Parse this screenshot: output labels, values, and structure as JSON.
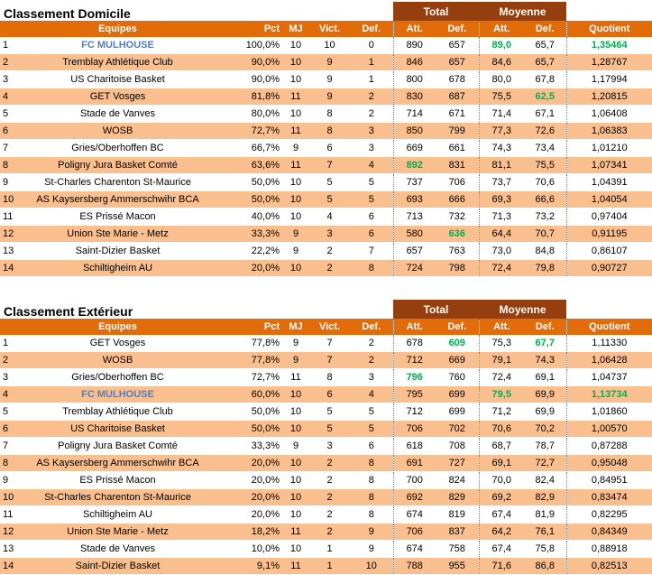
{
  "tables": [
    {
      "title": "Classement Domicile",
      "group_total": "Total",
      "group_moyenne": "Moyenne",
      "headers": [
        "Equipes",
        "Pct",
        "MJ",
        "Vict.",
        "Def.",
        "Att.",
        "Def.",
        "Att.",
        "Def.",
        "Quotient"
      ],
      "rows": [
        {
          "rank": "1",
          "team": "FC MULHOUSE",
          "pct": "100,0%",
          "mj": "10",
          "vict": "10",
          "def": "0",
          "tot_att": "890",
          "tot_def": "657",
          "moy_att": "89,0",
          "moy_def": "65,7",
          "quotient": "1,35464",
          "highlight_team": true,
          "green": [
            "moy_att",
            "quotient"
          ]
        },
        {
          "rank": "2",
          "team": "Tremblay Athlétique Club",
          "pct": "90,0%",
          "mj": "10",
          "vict": "9",
          "def": "1",
          "tot_att": "846",
          "tot_def": "657",
          "moy_att": "84,6",
          "moy_def": "65,7",
          "quotient": "1,28767",
          "green": []
        },
        {
          "rank": "3",
          "team": "US Charitoise Basket",
          "pct": "90,0%",
          "mj": "10",
          "vict": "9",
          "def": "1",
          "tot_att": "800",
          "tot_def": "678",
          "moy_att": "80,0",
          "moy_def": "67,8",
          "quotient": "1,17994",
          "green": []
        },
        {
          "rank": "4",
          "team": "GET Vosges",
          "pct": "81,8%",
          "mj": "11",
          "vict": "9",
          "def": "2",
          "tot_att": "830",
          "tot_def": "687",
          "moy_att": "75,5",
          "moy_def": "62,5",
          "quotient": "1,20815",
          "green": [
            "moy_def"
          ]
        },
        {
          "rank": "5",
          "team": "Stade de Vanves",
          "pct": "80,0%",
          "mj": "10",
          "vict": "8",
          "def": "2",
          "tot_att": "714",
          "tot_def": "671",
          "moy_att": "71,4",
          "moy_def": "67,1",
          "quotient": "1,06408",
          "green": []
        },
        {
          "rank": "6",
          "team": "WOSB",
          "pct": "72,7%",
          "mj": "11",
          "vict": "8",
          "def": "3",
          "tot_att": "850",
          "tot_def": "799",
          "moy_att": "77,3",
          "moy_def": "72,6",
          "quotient": "1,06383",
          "green": []
        },
        {
          "rank": "7",
          "team": "Gries/Oberhoffen BC",
          "pct": "66,7%",
          "mj": "9",
          "vict": "6",
          "def": "3",
          "tot_att": "669",
          "tot_def": "661",
          "moy_att": "74,3",
          "moy_def": "73,4",
          "quotient": "1,01210",
          "green": []
        },
        {
          "rank": "8",
          "team": "Poligny Jura Basket Comté",
          "pct": "63,6%",
          "mj": "11",
          "vict": "7",
          "def": "4",
          "tot_att": "892",
          "tot_def": "831",
          "moy_att": "81,1",
          "moy_def": "75,5",
          "quotient": "1,07341",
          "green": [
            "tot_att"
          ]
        },
        {
          "rank": "9",
          "team": "St-Charles Charenton St-Maurice",
          "pct": "50,0%",
          "mj": "10",
          "vict": "5",
          "def": "5",
          "tot_att": "737",
          "tot_def": "706",
          "moy_att": "73,7",
          "moy_def": "70,6",
          "quotient": "1,04391",
          "green": []
        },
        {
          "rank": "10",
          "team": "AS Kaysersberg Ammerschwihr BCA",
          "pct": "50,0%",
          "mj": "10",
          "vict": "5",
          "def": "5",
          "tot_att": "693",
          "tot_def": "666",
          "moy_att": "69,3",
          "moy_def": "66,6",
          "quotient": "1,04054",
          "green": []
        },
        {
          "rank": "11",
          "team": "ES Prissé Macon",
          "pct": "40,0%",
          "mj": "10",
          "vict": "4",
          "def": "6",
          "tot_att": "713",
          "tot_def": "732",
          "moy_att": "71,3",
          "moy_def": "73,2",
          "quotient": "0,97404",
          "green": []
        },
        {
          "rank": "12",
          "team": "Union Ste Marie - Metz",
          "pct": "33,3%",
          "mj": "9",
          "vict": "3",
          "def": "6",
          "tot_att": "580",
          "tot_def": "636",
          "moy_att": "64,4",
          "moy_def": "70,7",
          "quotient": "0,91195",
          "green": [
            "tot_def"
          ]
        },
        {
          "rank": "13",
          "team": "Saint-Dizier Basket",
          "pct": "22,2%",
          "mj": "9",
          "vict": "2",
          "def": "7",
          "tot_att": "657",
          "tot_def": "763",
          "moy_att": "73,0",
          "moy_def": "84,8",
          "quotient": "0,86107",
          "green": []
        },
        {
          "rank": "14",
          "team": "Schiltigheim AU",
          "pct": "20,0%",
          "mj": "10",
          "vict": "2",
          "def": "8",
          "tot_att": "724",
          "tot_def": "798",
          "moy_att": "72,4",
          "moy_def": "79,8",
          "quotient": "0,90727",
          "green": []
        }
      ]
    },
    {
      "title": "Classement Extérieur",
      "group_total": "Total",
      "group_moyenne": "Moyenne",
      "headers": [
        "Equipes",
        "Pct",
        "MJ",
        "Vict.",
        "Def.",
        "Att.",
        "Def.",
        "Att.",
        "Def.",
        "Quotient"
      ],
      "rows": [
        {
          "rank": "1",
          "team": "GET Vosges",
          "pct": "77,8%",
          "mj": "9",
          "vict": "7",
          "def": "2",
          "tot_att": "678",
          "tot_def": "609",
          "moy_att": "75,3",
          "moy_def": "67,7",
          "quotient": "1,11330",
          "green": [
            "tot_def",
            "moy_def"
          ]
        },
        {
          "rank": "2",
          "team": "WOSB",
          "pct": "77,8%",
          "mj": "9",
          "vict": "7",
          "def": "2",
          "tot_att": "712",
          "tot_def": "669",
          "moy_att": "79,1",
          "moy_def": "74,3",
          "quotient": "1,06428",
          "green": []
        },
        {
          "rank": "3",
          "team": "Gries/Oberhoffen BC",
          "pct": "72,7%",
          "mj": "11",
          "vict": "8",
          "def": "3",
          "tot_att": "796",
          "tot_def": "760",
          "moy_att": "72,4",
          "moy_def": "69,1",
          "quotient": "1,04737",
          "green": [
            "tot_att"
          ]
        },
        {
          "rank": "4",
          "team": "FC MULHOUSE",
          "pct": "60,0%",
          "mj": "10",
          "vict": "6",
          "def": "4",
          "tot_att": "795",
          "tot_def": "699",
          "moy_att": "79,5",
          "moy_def": "69,9",
          "quotient": "1,13734",
          "highlight_team": true,
          "green": [
            "moy_att",
            "quotient"
          ]
        },
        {
          "rank": "5",
          "team": "Tremblay Athlétique Club",
          "pct": "50,0%",
          "mj": "10",
          "vict": "5",
          "def": "5",
          "tot_att": "712",
          "tot_def": "699",
          "moy_att": "71,2",
          "moy_def": "69,9",
          "quotient": "1,01860",
          "green": []
        },
        {
          "rank": "6",
          "team": "US Charitoise Basket",
          "pct": "50,0%",
          "mj": "10",
          "vict": "5",
          "def": "5",
          "tot_att": "706",
          "tot_def": "702",
          "moy_att": "70,6",
          "moy_def": "70,2",
          "quotient": "1,00570",
          "green": []
        },
        {
          "rank": "7",
          "team": "Poligny Jura Basket Comté",
          "pct": "33,3%",
          "mj": "9",
          "vict": "3",
          "def": "6",
          "tot_att": "618",
          "tot_def": "708",
          "moy_att": "68,7",
          "moy_def": "78,7",
          "quotient": "0,87288",
          "green": []
        },
        {
          "rank": "8",
          "team": "AS Kaysersberg Ammerschwihr BCA",
          "pct": "20,0%",
          "mj": "10",
          "vict": "2",
          "def": "8",
          "tot_att": "691",
          "tot_def": "727",
          "moy_att": "69,1",
          "moy_def": "72,7",
          "quotient": "0,95048",
          "green": []
        },
        {
          "rank": "9",
          "team": "ES Prissé Macon",
          "pct": "20,0%",
          "mj": "10",
          "vict": "2",
          "def": "8",
          "tot_att": "700",
          "tot_def": "824",
          "moy_att": "70,0",
          "moy_def": "82,4",
          "quotient": "0,84951",
          "green": []
        },
        {
          "rank": "10",
          "team": "St-Charles Charenton St-Maurice",
          "pct": "20,0%",
          "mj": "10",
          "vict": "2",
          "def": "8",
          "tot_att": "692",
          "tot_def": "829",
          "moy_att": "69,2",
          "moy_def": "82,9",
          "quotient": "0,83474",
          "green": []
        },
        {
          "rank": "11",
          "team": "Schiltigheim AU",
          "pct": "20,0%",
          "mj": "10",
          "vict": "2",
          "def": "8",
          "tot_att": "674",
          "tot_def": "819",
          "moy_att": "67,4",
          "moy_def": "81,9",
          "quotient": "0,82295",
          "green": []
        },
        {
          "rank": "12",
          "team": "Union Ste Marie - Metz",
          "pct": "18,2%",
          "mj": "11",
          "vict": "2",
          "def": "9",
          "tot_att": "706",
          "tot_def": "837",
          "moy_att": "64,2",
          "moy_def": "76,1",
          "quotient": "0,84349",
          "green": []
        },
        {
          "rank": "13",
          "team": "Stade de Vanves",
          "pct": "10,0%",
          "mj": "10",
          "vict": "1",
          "def": "9",
          "tot_att": "674",
          "tot_def": "758",
          "moy_att": "67,4",
          "moy_def": "75,8",
          "quotient": "0,88918",
          "green": []
        },
        {
          "rank": "14",
          "team": "Saint-Dizier Basket",
          "pct": "9,1%",
          "mj": "11",
          "vict": "1",
          "def": "10",
          "tot_att": "788",
          "tot_def": "955",
          "moy_att": "71,6",
          "moy_def": "86,8",
          "quotient": "0,82513",
          "green": []
        }
      ]
    }
  ],
  "colors": {
    "header_orange": "#e26b0a",
    "band_brown": "#953f0e",
    "stripe_peach": "#fabf8f",
    "highlight_blue": "#4f81bd",
    "highlight_green": "#00b050"
  }
}
